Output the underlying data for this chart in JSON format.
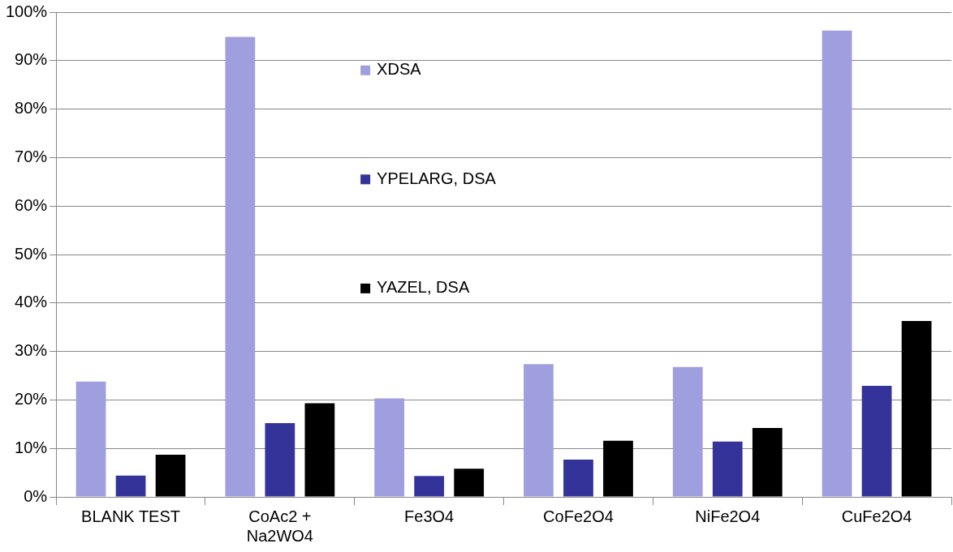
{
  "chart_data": {
    "type": "bar",
    "categories": [
      "BLANK TEST",
      "CoAc2 + Na2WO4",
      "Fe3O4",
      "CoFe2O4",
      "NiFe2O4",
      "CuFe2O4"
    ],
    "series": [
      {
        "name": "XDSA",
        "color": "#9f9fdf",
        "values": [
          23.8,
          94.9,
          20.3,
          27.4,
          26.8,
          96.2
        ]
      },
      {
        "name": "YPELARG, DSA",
        "color": "#333399",
        "values": [
          4.4,
          15.2,
          4.3,
          7.7,
          11.4,
          22.9
        ]
      },
      {
        "name": "YAZEL, DSA",
        "color": "#000000",
        "values": [
          8.7,
          19.3,
          5.8,
          11.6,
          14.2,
          36.3
        ]
      }
    ],
    "ylim": [
      0,
      100
    ],
    "yticks": [
      {
        "value": 0,
        "label": "0%"
      },
      {
        "value": 10,
        "label": "10%"
      },
      {
        "value": 20,
        "label": "20%"
      },
      {
        "value": 30,
        "label": "30%"
      },
      {
        "value": 40,
        "label": "40%"
      },
      {
        "value": 50,
        "label": "50%"
      },
      {
        "value": 60,
        "label": "60%"
      },
      {
        "value": 70,
        "label": "70%"
      },
      {
        "value": 80,
        "label": "80%"
      },
      {
        "value": 90,
        "label": "90%"
      },
      {
        "value": 100,
        "label": "100%"
      }
    ],
    "grid": "y",
    "legend": "top"
  }
}
